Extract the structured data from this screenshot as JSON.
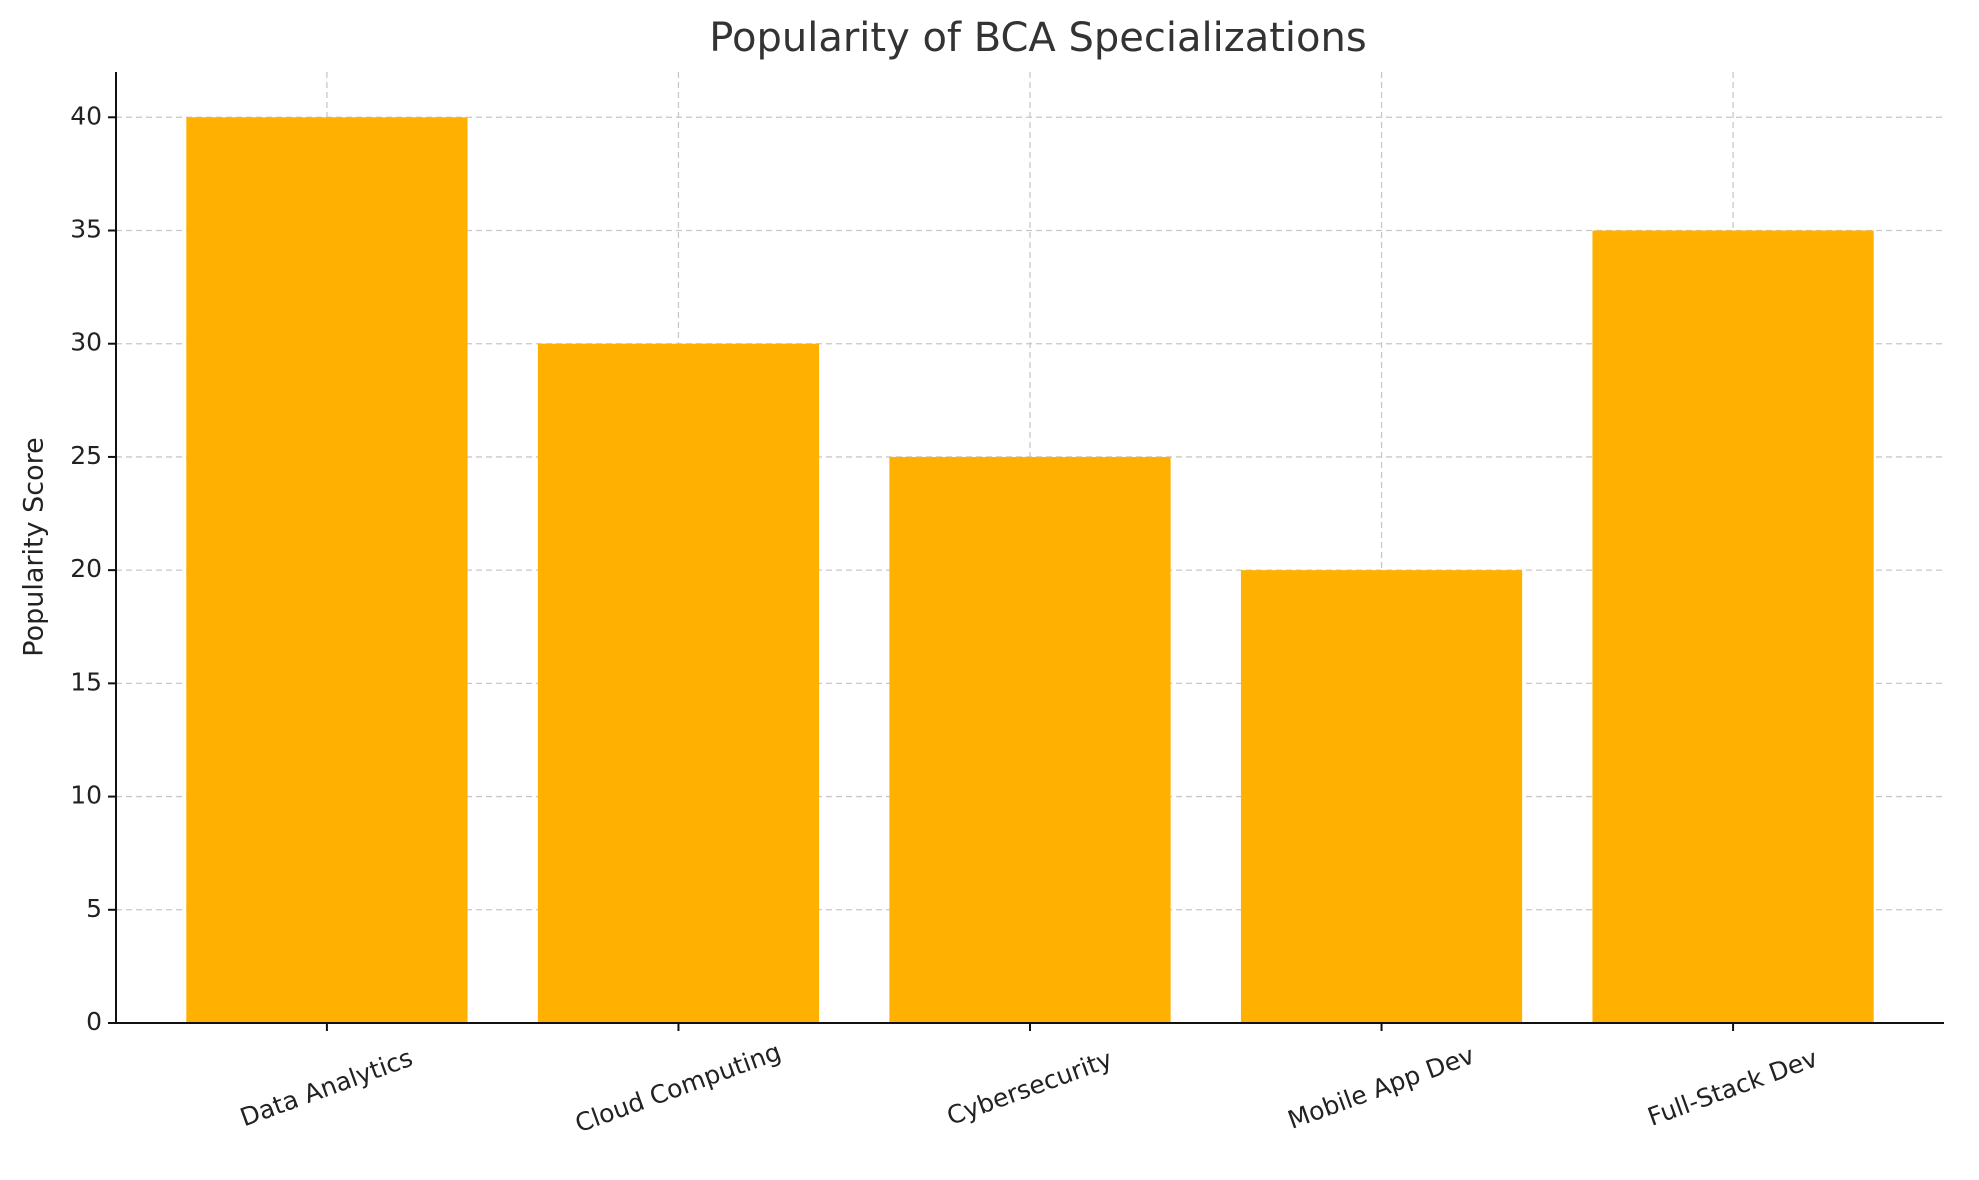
{
  "chart_data": {
    "type": "bar",
    "title": "Popularity of BCA Specializations",
    "ylabel": "Popularity Score",
    "categories": [
      "Data Analytics",
      "Cloud Computing",
      "Cybersecurity",
      "Mobile App Dev",
      "Full-Stack Dev"
    ],
    "values": [
      40,
      30,
      25,
      20,
      35
    ],
    "color": "#ffb000",
    "ylim": [
      0,
      42
    ],
    "yticks": [
      0,
      5,
      10,
      15,
      20,
      25,
      30,
      35,
      40
    ],
    "grid": true
  }
}
